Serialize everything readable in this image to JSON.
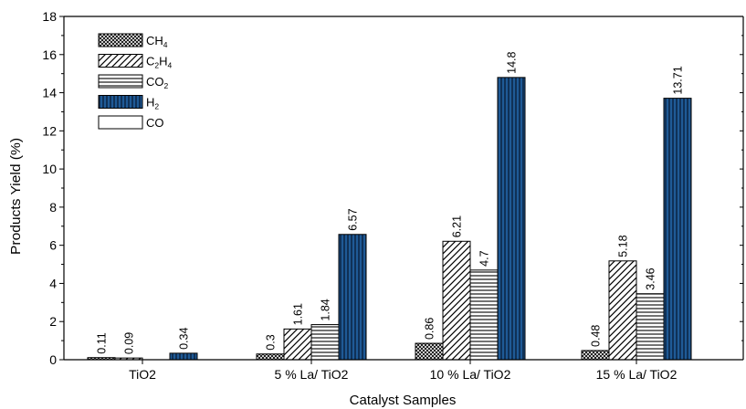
{
  "chart_data": {
    "type": "bar",
    "categories": [
      "TiO2",
      "5 % La/ TiO2",
      "10 % La/ TiO2",
      "15 % La/ TiO2"
    ],
    "series": [
      {
        "name": "CH4",
        "name_main": "CH",
        "name_sub": "4",
        "pattern": "crosshatch",
        "values": [
          0.11,
          0.3,
          0.86,
          0.48
        ],
        "labels": [
          "0.11",
          "0.3",
          "0.86",
          "0.48"
        ]
      },
      {
        "name": "C2H4",
        "name_parts": [
          "C",
          "2",
          "H",
          "4"
        ],
        "pattern": "diagonal",
        "values": [
          0.09,
          1.61,
          6.21,
          5.18
        ],
        "labels": [
          "0.09",
          "1.61",
          "6.21",
          "5.18"
        ]
      },
      {
        "name": "CO2",
        "name_main": "CO",
        "name_sub": "2",
        "pattern": "horizontal",
        "values": [
          0,
          1.84,
          4.7,
          3.46
        ],
        "labels": [
          "",
          "1.84",
          "4.7",
          "3.46"
        ]
      },
      {
        "name": "H2",
        "name_main": "H",
        "name_sub": "2",
        "pattern": "vertical-blue",
        "values": [
          0.34,
          6.57,
          14.8,
          13.71
        ],
        "labels": [
          "0.34",
          "6.57",
          "14.8",
          "13.71"
        ]
      },
      {
        "name": "CO",
        "name_main": "CO",
        "name_sub": "",
        "pattern": "empty",
        "values": [
          0,
          0,
          0,
          0
        ],
        "labels": [
          "",
          "",
          "",
          ""
        ]
      }
    ],
    "xlabel": "Catalyst Samples",
    "ylabel": "Products Yield (%)",
    "ylim": [
      0,
      18
    ],
    "yticks": [
      "0",
      "2",
      "4",
      "6",
      "8",
      "10",
      "12",
      "14",
      "16",
      "18"
    ],
    "legend_position": "top-left",
    "colors": {
      "h2_fill": "#1f5a96",
      "h2_stripe": "#0a1f3c",
      "stroke": "#000000"
    }
  }
}
